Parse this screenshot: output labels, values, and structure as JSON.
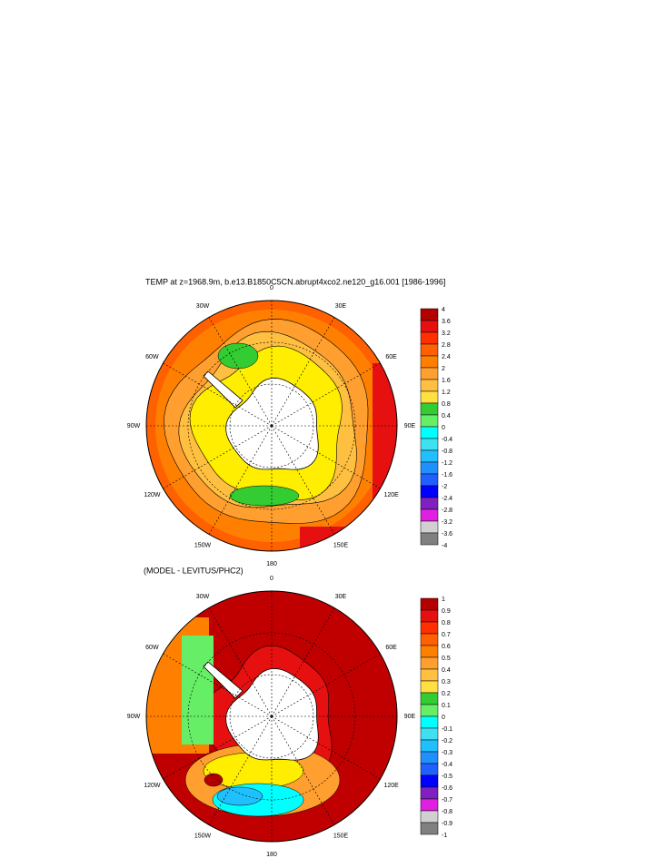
{
  "title": "TEMP at z=1968.9m, b.e13.B1850C5CN.abrupt4xco2.ne120_g16.001 [1986-1996]",
  "panels": [
    {
      "longitude_labels": [
        "0",
        "30E",
        "60E",
        "90E",
        "120E",
        "150E",
        "180",
        "150W",
        "120W",
        "90W",
        "60W",
        "30W"
      ],
      "colorbar": {
        "labels": [
          4,
          3.6,
          3.2,
          2.8,
          2.4,
          2,
          1.6,
          1.2,
          0.8,
          0.4,
          0,
          -0.4,
          -0.8,
          -1.2,
          -1.6,
          -2,
          -2.4,
          -2.8,
          -3.2,
          -3.6,
          -4
        ],
        "colors": [
          "#b40000",
          "#e61010",
          "#ff3000",
          "#ff6000",
          "#ff8000",
          "#ff9f30",
          "#ffbf40",
          "#ffe040",
          "#33cc33",
          "#66ee66",
          "#00ffff",
          "#40e0f0",
          "#20c0ff",
          "#2090ff",
          "#2060ff",
          "#0000ff",
          "#8020c0",
          "#e020e0",
          "#d0d0d0",
          "#808080"
        ]
      }
    },
    {
      "title": "(MODEL - LEVITUS/PHC2)",
      "longitude_labels": [
        "0",
        "30E",
        "60E",
        "90E",
        "120E",
        "150E",
        "180",
        "150W",
        "120W",
        "90W",
        "60W",
        "30W"
      ],
      "colorbar": {
        "labels": [
          1,
          0.9,
          0.8,
          0.7,
          0.6,
          0.5,
          0.4,
          0.3,
          0.2,
          0.1,
          0,
          -0.1,
          -0.2,
          -0.3,
          -0.4,
          -0.5,
          -0.6,
          -0.7,
          -0.8,
          -0.9,
          -1
        ],
        "colors": [
          "#b40000",
          "#e61010",
          "#ff3000",
          "#ff6000",
          "#ff8000",
          "#ff9f30",
          "#ffbf40",
          "#ffe040",
          "#33cc33",
          "#66ee66",
          "#00ffff",
          "#40e0f0",
          "#20c0ff",
          "#2090ff",
          "#2060ff",
          "#0000ff",
          "#8020c0",
          "#e020e0",
          "#d0d0d0",
          "#808080"
        ]
      }
    }
  ]
}
